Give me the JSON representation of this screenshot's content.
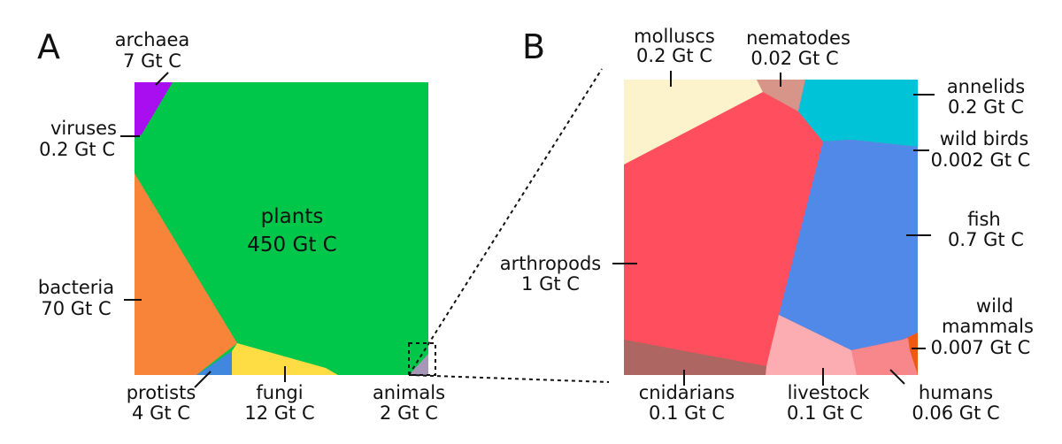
{
  "panels": {
    "a_letter": "A",
    "b_letter": "B"
  },
  "panel_a": {
    "plants": {
      "name": "plants",
      "value": "450 Gt C",
      "color": "#00c64a"
    },
    "archaea": {
      "name": "archaea",
      "value": "7 Gt C",
      "color": "#a90ef0"
    },
    "viruses": {
      "name": "viruses",
      "value": "0.2 Gt C"
    },
    "bacteria": {
      "name": "bacteria",
      "value": "70 Gt C",
      "color": "#f88439"
    },
    "protists": {
      "name": "protists",
      "value": "4 Gt C",
      "color": "#3f88de"
    },
    "fungi": {
      "name": "fungi",
      "value": "12 Gt C",
      "color": "#fedc43"
    },
    "animals": {
      "name": "animals",
      "value": "2 Gt C",
      "color": "#a697b9"
    }
  },
  "panel_b": {
    "molluscs": {
      "name": "molluscs",
      "value": "0.2 Gt C",
      "color": "#fcf2cc"
    },
    "nematodes": {
      "name": "nematodes",
      "value": "0.02 Gt C",
      "color": "#d7958a"
    },
    "annelids": {
      "name": "annelids",
      "value": "0.2 Gt C",
      "color": "#00c3d8"
    },
    "wild_birds": {
      "name": "wild birds",
      "value": "0.002 Gt C",
      "color": "#e13ef0"
    },
    "fish": {
      "name": "fish",
      "value": "0.7 Gt C",
      "color": "#5189e8"
    },
    "arthropods": {
      "name": "arthropods",
      "value": "1 Gt C",
      "color": "#ff4f5e"
    },
    "wild_mammals": {
      "name_line1": "wild",
      "name_line2": "mammals",
      "value": "0.007 Gt C",
      "color": "#f05a10"
    },
    "cnidarians": {
      "name": "cnidarians",
      "value": "0.1 Gt C",
      "color": "#ad6662"
    },
    "livestock": {
      "name": "livestock",
      "value": "0.1 Gt C",
      "color": "#fbadb1"
    },
    "humans": {
      "name": "humans",
      "value": "0.06 Gt C",
      "color": "#f7878a"
    }
  }
}
